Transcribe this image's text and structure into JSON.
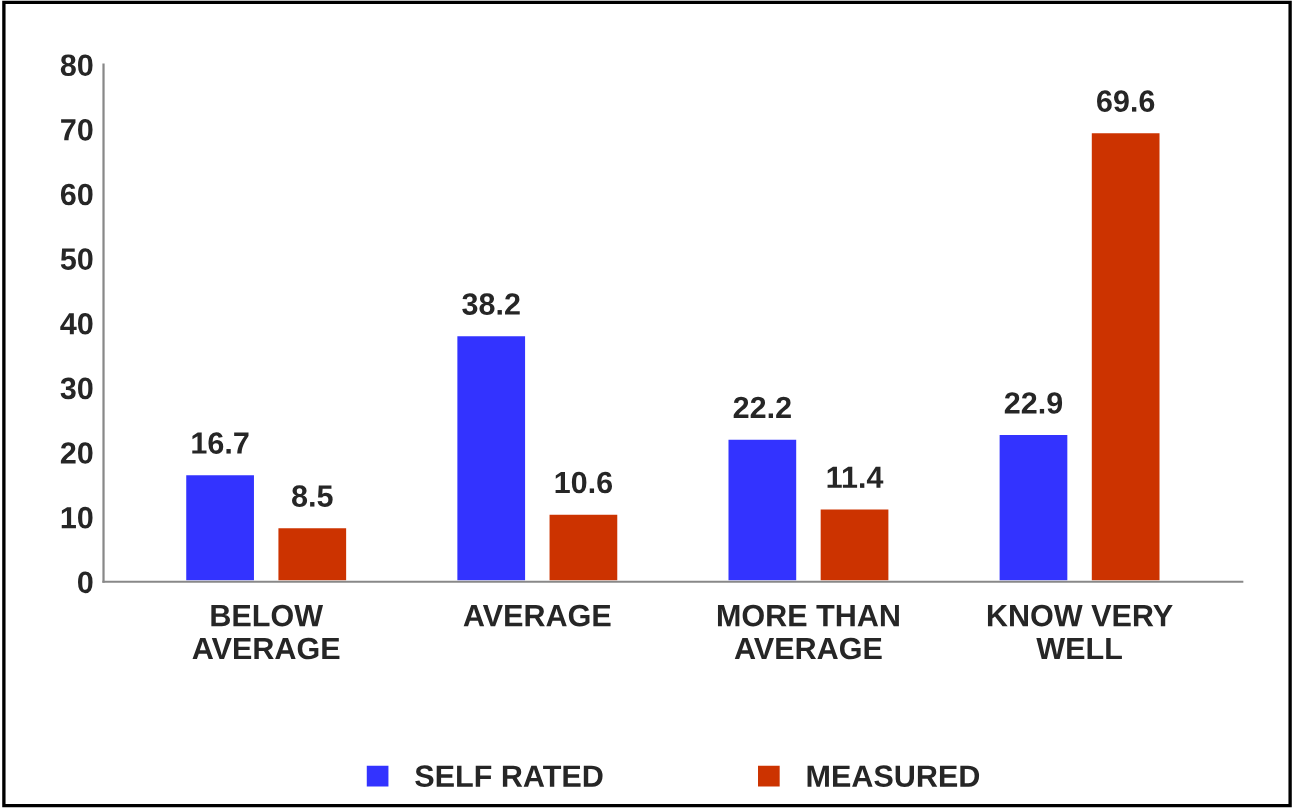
{
  "chart_data": {
    "type": "bar",
    "categories": [
      "BELOW\nAVERAGE",
      "AVERAGE",
      "MORE THAN\nAVERAGE",
      "KNOW VERY\nWELL"
    ],
    "series": [
      {
        "name": "SELF RATED",
        "color": "#3333ff",
        "values": [
          16.7,
          38.2,
          22.2,
          22.9
        ]
      },
      {
        "name": "MEASURED",
        "color": "#cc3300",
        "values": [
          8.5,
          10.6,
          11.4,
          69.6
        ]
      }
    ],
    "ylim": [
      0,
      80
    ],
    "yticks": [
      0,
      10,
      20,
      30,
      40,
      50,
      60,
      70,
      80
    ],
    "data_labels": true,
    "grid": false,
    "legend": "bottom"
  }
}
